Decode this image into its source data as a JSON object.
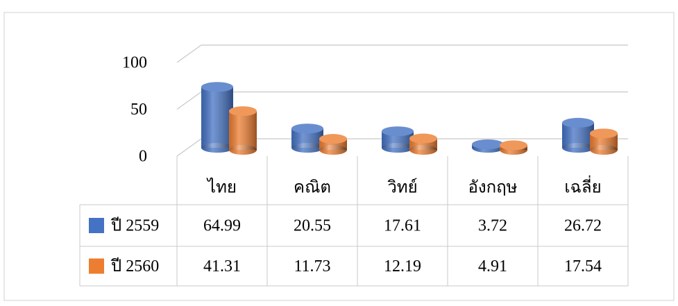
{
  "chart_data": {
    "type": "bar3d",
    "categories": [
      "ไทย",
      "คณิต",
      "วิทย์",
      "อังกฤษ",
      "เฉลี่ย"
    ],
    "series": [
      {
        "name": "ปี 2559",
        "color": "#4472c4",
        "values": [
          64.99,
          20.55,
          17.61,
          3.72,
          26.72
        ]
      },
      {
        "name": "ปี 2560",
        "color": "#ed7d31",
        "values": [
          41.31,
          11.73,
          12.19,
          4.91,
          17.54
        ]
      }
    ],
    "ylim": [
      0,
      100
    ],
    "yticks": [
      0,
      50,
      100
    ],
    "grid": true,
    "data_table": true
  }
}
